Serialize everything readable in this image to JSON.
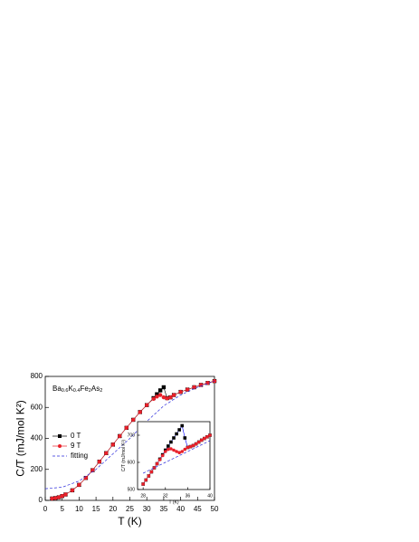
{
  "chart_data": [
    {
      "type": "line",
      "annotation_parts": [
        {
          "text": "Ba"
        },
        {
          "text": "0.6",
          "sub": true
        },
        {
          "text": "K"
        },
        {
          "text": "0.4",
          "sub": true
        },
        {
          "text": "Fe"
        },
        {
          "text": "2",
          "sub": true
        },
        {
          "text": "As"
        },
        {
          "text": "2",
          "sub": true
        }
      ],
      "xlabel": "T (K)",
      "ylabel": "C/T (mJ/mol K²)",
      "xlim": [
        0,
        50
      ],
      "ylim": [
        0,
        800
      ],
      "xticks": [
        0,
        5,
        10,
        15,
        20,
        25,
        30,
        35,
        40,
        45,
        50
      ],
      "yticks": [
        0,
        200,
        400,
        600,
        800
      ],
      "legend": "left",
      "series": [
        {
          "name": "0 T",
          "color": "#000000",
          "marker": "square",
          "x": [
            2,
            3,
            4,
            5,
            6,
            8,
            10,
            12,
            14,
            16,
            18,
            20,
            22,
            24,
            26,
            28,
            30,
            32,
            33,
            34,
            35,
            36,
            37,
            38,
            40,
            42,
            44,
            46,
            48,
            50
          ],
          "values": [
            12,
            15,
            20,
            28,
            38,
            65,
            100,
            145,
            195,
            250,
            305,
            360,
            415,
            468,
            520,
            570,
            615,
            660,
            685,
            710,
            730,
            660,
            665,
            680,
            700,
            715,
            730,
            745,
            758,
            770
          ]
        },
        {
          "name": "9 T",
          "color": "#e8202a",
          "marker": "circle",
          "x": [
            2,
            3,
            4,
            5,
            6,
            8,
            10,
            12,
            14,
            16,
            18,
            20,
            22,
            24,
            26,
            28,
            30,
            32,
            33,
            34,
            35,
            36,
            37,
            38,
            40,
            42,
            44,
            46,
            48,
            50
          ],
          "values": [
            12,
            15,
            20,
            28,
            38,
            65,
            100,
            145,
            195,
            250,
            305,
            360,
            415,
            468,
            520,
            570,
            615,
            655,
            670,
            680,
            665,
            658,
            665,
            680,
            700,
            715,
            730,
            745,
            758,
            770
          ]
        },
        {
          "name": "fitting",
          "color": "#2a2adc",
          "marker": "dash",
          "x": [
            0,
            5,
            10,
            15,
            20,
            25,
            30,
            35,
            40,
            45,
            50
          ],
          "values": [
            75,
            85,
            125,
            200,
            300,
            400,
            510,
            610,
            680,
            730,
            770
          ]
        }
      ]
    },
    {
      "type": "line",
      "xlabel": "T (K)",
      "ylabel": "C/T (mJ/mol K²)",
      "xlim": [
        27,
        40
      ],
      "ylim": [
        500,
        750
      ],
      "xticks": [
        28,
        32,
        36,
        40
      ],
      "yticks": [
        500,
        600,
        700
      ],
      "series": [
        {
          "name": "0 T",
          "color": "#000000",
          "marker": "square",
          "line_color": "#0000ff",
          "x": [
            28,
            28.5,
            29,
            29.5,
            30,
            30.5,
            31,
            31.5,
            32,
            32.5,
            33,
            33.5,
            34,
            34.5,
            35,
            35.5,
            36,
            36.5,
            37,
            37.5,
            38,
            38.5,
            39,
            39.5,
            40
          ],
          "values": [
            520,
            535,
            550,
            565,
            580,
            595,
            612,
            628,
            645,
            660,
            675,
            690,
            705,
            720,
            735,
            690,
            655,
            658,
            662,
            668,
            675,
            682,
            688,
            694,
            700
          ]
        },
        {
          "name": "9 T",
          "color": "#e8202a",
          "marker": "circle",
          "x": [
            28,
            28.5,
            29,
            29.5,
            30,
            30.5,
            31,
            31.5,
            32,
            32.5,
            33,
            33.5,
            34,
            34.5,
            35,
            35.5,
            36,
            36.5,
            37,
            37.5,
            38,
            38.5,
            39,
            39.5,
            40
          ],
          "values": [
            520,
            535,
            550,
            565,
            580,
            595,
            610,
            625,
            640,
            648,
            650,
            645,
            640,
            636,
            640,
            648,
            655,
            658,
            662,
            668,
            675,
            682,
            688,
            694,
            700
          ]
        },
        {
          "name": "fitting",
          "color": "#2a2adc",
          "marker": "dash",
          "x": [
            28,
            32,
            36,
            40
          ],
          "values": [
            560,
            600,
            640,
            680
          ]
        }
      ]
    }
  ]
}
